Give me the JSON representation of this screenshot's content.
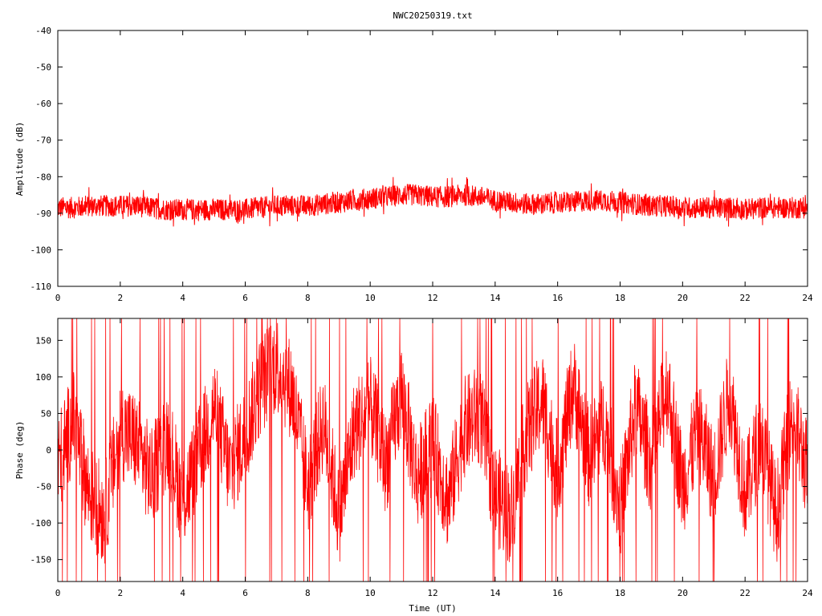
{
  "title": "NWC20250319.txt",
  "chart_data": [
    {
      "type": "line",
      "panel": "amplitude",
      "ylabel": "Amplitude (dB)",
      "xlabel": "",
      "xlim": [
        0,
        24
      ],
      "ylim": [
        -110,
        -40
      ],
      "xticks": [
        "0",
        "2",
        "4",
        "6",
        "8",
        "10",
        "12",
        "14",
        "16",
        "18",
        "20",
        "22",
        "24"
      ],
      "yticks": [
        "-40",
        "-50",
        "-60",
        "-70",
        "-80",
        "-90",
        "-100",
        "-110"
      ],
      "grid": false,
      "color": "#ff0000",
      "series": [
        {
          "x": [
            0,
            0.5,
            1,
            1.5,
            2,
            2.5,
            3,
            3.5,
            4,
            4.5,
            5,
            5.5,
            6,
            6.5,
            7,
            7.5,
            8,
            8.5,
            9,
            9.5,
            10,
            10.5,
            11,
            11.5,
            12,
            12.5,
            13,
            13.5,
            14,
            14.5,
            15,
            15.5,
            16,
            16.5,
            17,
            17.5,
            18,
            18.5,
            19,
            19.5,
            20,
            20.5,
            21,
            21.5,
            22,
            22.5,
            23,
            23.5,
            24
          ],
          "y": [
            -88.5,
            -88.5,
            -88,
            -88,
            -88,
            -88,
            -88.5,
            -89,
            -89,
            -89,
            -89,
            -89,
            -89,
            -88.5,
            -88,
            -88,
            -88,
            -87.5,
            -87,
            -86.5,
            -86,
            -85.5,
            -85,
            -85,
            -85.5,
            -85.5,
            -85,
            -85.5,
            -86.5,
            -87,
            -87.5,
            -87.5,
            -87,
            -87,
            -86.5,
            -86.5,
            -87,
            -87.5,
            -88,
            -88,
            -88.5,
            -88.5,
            -88.5,
            -88.5,
            -89,
            -88.5,
            -88.5,
            -88.5,
            -88.5
          ],
          "band": 3
        }
      ]
    },
    {
      "type": "line",
      "panel": "phase",
      "ylabel": "Phase (deg)",
      "xlabel": "Time (UT)",
      "xlim": [
        0,
        24
      ],
      "ylim": [
        -180,
        180
      ],
      "xticks": [
        "0",
        "2",
        "4",
        "6",
        "8",
        "10",
        "12",
        "14",
        "16",
        "18",
        "20",
        "22",
        "24"
      ],
      "yticks": [
        "150",
        "100",
        "50",
        "0",
        "-50",
        "-100",
        "-150"
      ],
      "grid": false,
      "color": "#ff0000",
      "series": [
        {
          "x": [
            0,
            0.5,
            1,
            1.5,
            2,
            2.5,
            3,
            3.5,
            4,
            4.5,
            5,
            5.5,
            6,
            6.5,
            7,
            7.5,
            8,
            8.5,
            9,
            9.5,
            10,
            10.5,
            11,
            11.5,
            12,
            12.5,
            13,
            13.5,
            14,
            14.5,
            15,
            15.5,
            16,
            16.5,
            17,
            17.5,
            18,
            18.5,
            19,
            19.5,
            20,
            20.5,
            21,
            21.5,
            22,
            22.5,
            23,
            23.5,
            24
          ],
          "y": [
            -20,
            40,
            -60,
            -90,
            30,
            10,
            -40,
            20,
            -70,
            -10,
            60,
            -30,
            20,
            90,
            120,
            80,
            -50,
            40,
            -90,
            30,
            60,
            -20,
            80,
            -40,
            10,
            -70,
            30,
            50,
            -60,
            -90,
            20,
            70,
            -30,
            90,
            -10,
            40,
            -80,
            60,
            -20,
            90,
            -50,
            30,
            -40,
            80,
            -60,
            20,
            -90,
            50,
            -30
          ],
          "noise": 140
        }
      ]
    }
  ]
}
